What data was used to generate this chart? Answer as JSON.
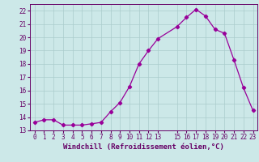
{
  "x": [
    0,
    1,
    2,
    3,
    4,
    5,
    6,
    7,
    8,
    9,
    10,
    11,
    12,
    13,
    15,
    16,
    17,
    18,
    19,
    20,
    21,
    22,
    23
  ],
  "y": [
    13.6,
    13.8,
    13.8,
    13.4,
    13.4,
    13.4,
    13.5,
    13.6,
    14.4,
    15.1,
    16.3,
    18.0,
    19.0,
    19.9,
    20.8,
    21.5,
    22.1,
    21.6,
    20.6,
    20.3,
    18.3,
    16.2,
    14.5
  ],
  "line_color": "#990099",
  "marker": "D",
  "marker_size": 2.2,
  "bg_color": "#cce8e8",
  "grid_color": "#aacccc",
  "xlabel": "Windchill (Refroidissement éolien,°C)",
  "xlim": [
    -0.5,
    23.5
  ],
  "ylim": [
    13.0,
    22.5
  ],
  "yticks": [
    13,
    14,
    15,
    16,
    17,
    18,
    19,
    20,
    21,
    22
  ],
  "xticks": [
    0,
    1,
    2,
    3,
    4,
    5,
    6,
    7,
    8,
    9,
    10,
    11,
    12,
    13,
    15,
    16,
    17,
    18,
    19,
    20,
    21,
    22,
    23
  ],
  "tick_fontsize": 5.5,
  "xlabel_fontsize": 6.5,
  "tick_color": "#660066",
  "spine_color": "#660066",
  "linewidth": 0.9
}
